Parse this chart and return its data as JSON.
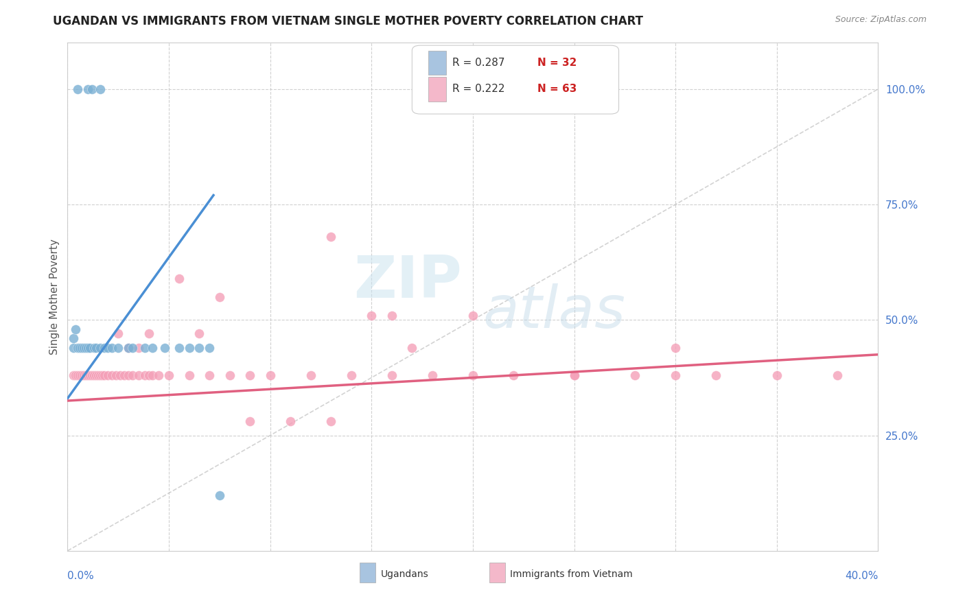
{
  "title": "UGANDAN VS IMMIGRANTS FROM VIETNAM SINGLE MOTHER POVERTY CORRELATION CHART",
  "source": "Source: ZipAtlas.com",
  "ylabel": "Single Mother Poverty",
  "legend_color1": "#a8c4e0",
  "legend_color2": "#f4b8ca",
  "ugandan_color": "#7ab0d4",
  "vietnam_color": "#f4a0b8",
  "trendline1_color": "#4a8fd4",
  "trendline2_color": "#e06080",
  "diagonal_color": "#c8c8c8",
  "background_color": "#ffffff",
  "watermark_zip": "ZIP",
  "watermark_atlas": "atlas",
  "ugandan_x": [
    0.005,
    0.01,
    0.012,
    0.016,
    0.003,
    0.005,
    0.006,
    0.007,
    0.008,
    0.009,
    0.01,
    0.011,
    0.013,
    0.014,
    0.016,
    0.018,
    0.02,
    0.022,
    0.025,
    0.03,
    0.032,
    0.038,
    0.042,
    0.048,
    0.055,
    0.065,
    0.003,
    0.004,
    0.06,
    0.07,
    0.075
  ],
  "ugandan_y": [
    1.0,
    1.0,
    1.0,
    1.0,
    0.44,
    0.44,
    0.44,
    0.44,
    0.44,
    0.44,
    0.44,
    0.44,
    0.44,
    0.44,
    0.44,
    0.44,
    0.44,
    0.44,
    0.44,
    0.44,
    0.44,
    0.44,
    0.44,
    0.44,
    0.44,
    0.44,
    0.46,
    0.48,
    0.44,
    0.44,
    0.12
  ],
  "vietnam_x": [
    0.003,
    0.004,
    0.005,
    0.006,
    0.007,
    0.008,
    0.009,
    0.01,
    0.011,
    0.012,
    0.013,
    0.014,
    0.015,
    0.016,
    0.017,
    0.018,
    0.02,
    0.022,
    0.024,
    0.026,
    0.028,
    0.03,
    0.032,
    0.035,
    0.038,
    0.04,
    0.042,
    0.045,
    0.05,
    0.06,
    0.07,
    0.08,
    0.09,
    0.1,
    0.12,
    0.14,
    0.16,
    0.18,
    0.2,
    0.22,
    0.25,
    0.28,
    0.3,
    0.32,
    0.35,
    0.38,
    0.025,
    0.03,
    0.035,
    0.04,
    0.055,
    0.065,
    0.075,
    0.09,
    0.11,
    0.13,
    0.15,
    0.17,
    0.2,
    0.25,
    0.3,
    0.13,
    0.16
  ],
  "vietnam_y": [
    0.38,
    0.38,
    0.38,
    0.38,
    0.38,
    0.38,
    0.38,
    0.38,
    0.38,
    0.38,
    0.38,
    0.38,
    0.38,
    0.38,
    0.38,
    0.38,
    0.38,
    0.38,
    0.38,
    0.38,
    0.38,
    0.38,
    0.38,
    0.38,
    0.38,
    0.38,
    0.38,
    0.38,
    0.38,
    0.38,
    0.38,
    0.38,
    0.38,
    0.38,
    0.38,
    0.38,
    0.38,
    0.38,
    0.38,
    0.38,
    0.38,
    0.38,
    0.38,
    0.38,
    0.38,
    0.38,
    0.47,
    0.44,
    0.44,
    0.47,
    0.59,
    0.47,
    0.55,
    0.28,
    0.28,
    0.28,
    0.51,
    0.44,
    0.51,
    0.38,
    0.44,
    0.68,
    0.51
  ],
  "xlim": [
    0.0,
    0.4
  ],
  "ylim": [
    0.0,
    1.1
  ],
  "xtick_positions": [
    0.0,
    0.05,
    0.1,
    0.15,
    0.2,
    0.25,
    0.3,
    0.35,
    0.4
  ],
  "ytick_positions": [
    0.25,
    0.5,
    0.75,
    1.0
  ]
}
